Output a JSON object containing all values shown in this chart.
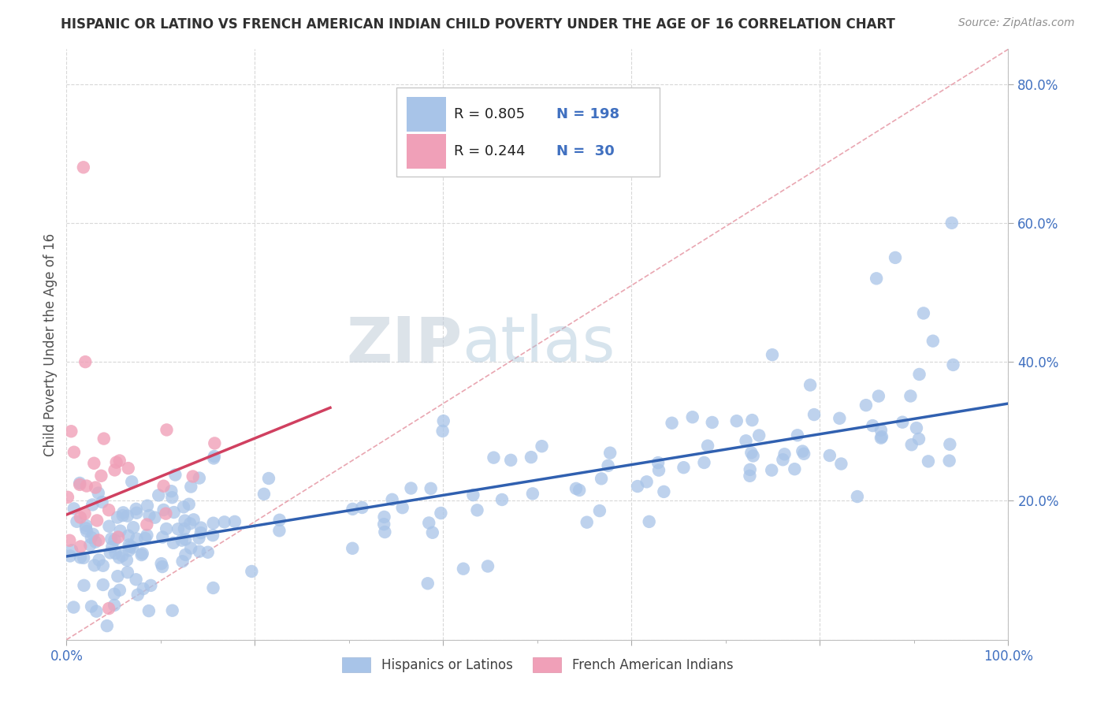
{
  "title": "HISPANIC OR LATINO VS FRENCH AMERICAN INDIAN CHILD POVERTY UNDER THE AGE OF 16 CORRELATION CHART",
  "source": "Source: ZipAtlas.com",
  "ylabel": "Child Poverty Under the Age of 16",
  "legend_labels": [
    "Hispanics or Latinos",
    "French American Indians"
  ],
  "blue_R": 0.805,
  "blue_N": 198,
  "pink_R": 0.244,
  "pink_N": 30,
  "blue_color": "#a8c4e8",
  "pink_color": "#f0a0b8",
  "blue_line_color": "#3060b0",
  "pink_line_color": "#d04060",
  "diag_line_color": "#e08090",
  "watermark_zip": "ZIP",
  "watermark_atlas": "atlas",
  "background_color": "#ffffff",
  "grid_color": "#d8d8d8",
  "title_color": "#303030",
  "source_color": "#909090",
  "tick_color": "#4070c0",
  "legend_text_color": "#4070c0",
  "xlim": [
    0.0,
    1.0
  ],
  "ylim": [
    0.0,
    0.85
  ],
  "blue_slope": 0.22,
  "blue_intercept": 0.12,
  "pink_slope": 0.55,
  "pink_intercept": 0.18,
  "diag_slope": 0.85,
  "diag_intercept": 0.0,
  "figsize": [
    14.06,
    8.92
  ],
  "dpi": 100
}
